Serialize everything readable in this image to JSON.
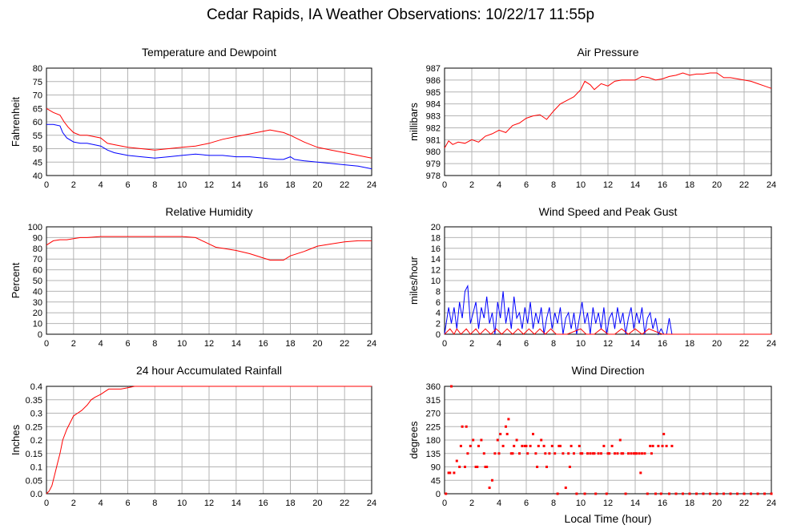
{
  "page": {
    "title": "Cedar Rapids, IA Weather Observations: 10/22/17 11:55p"
  },
  "colors": {
    "primary": "#ff0000",
    "secondary": "#0000ff",
    "grid": "#b4b4b4"
  },
  "chart_data": [
    {
      "id": "temperature",
      "type": "line",
      "title": "Temperature and Dewpoint",
      "xlabel": "",
      "ylabel": "Fahrenheit",
      "xlim": [
        0,
        24
      ],
      "ylim": [
        40,
        80
      ],
      "yticks": [
        40,
        45,
        50,
        55,
        60,
        65,
        70,
        75,
        80
      ],
      "grid": true,
      "series": [
        {
          "color": "#ff0000",
          "style": "line",
          "x": [
            0,
            0.5,
            1.0,
            1.3,
            1.6,
            2.0,
            2.5,
            3,
            4,
            4.5,
            5,
            6,
            7,
            8,
            9,
            10,
            11,
            12,
            13,
            14,
            15,
            16,
            16.5,
            17,
            17.5,
            18,
            19,
            20,
            21,
            22,
            23,
            24
          ],
          "y": [
            65,
            63.5,
            62.5,
            60,
            58,
            56,
            55,
            55,
            54,
            52,
            51.5,
            50.5,
            50,
            49.5,
            50,
            50.5,
            51,
            52,
            53.5,
            54.5,
            55.5,
            56.5,
            57,
            56.5,
            56,
            55,
            52.5,
            50.5,
            49.5,
            48.5,
            47.5,
            46.5
          ]
        },
        {
          "color": "#0000ff",
          "style": "line",
          "x": [
            0,
            0.5,
            1.0,
            1.2,
            1.5,
            2,
            2.5,
            3,
            4,
            4.5,
            5,
            6,
            7,
            8,
            9,
            10,
            11,
            12,
            13,
            14,
            15,
            16,
            17,
            17.5,
            18,
            18.3,
            19,
            20,
            21,
            22,
            23,
            24
          ],
          "y": [
            59,
            59,
            58.5,
            56,
            54,
            52.5,
            52,
            52,
            51,
            49.5,
            48.5,
            47.5,
            47,
            46.5,
            47,
            47.5,
            48,
            47.5,
            47.5,
            47,
            47,
            46.5,
            46,
            46,
            47,
            46,
            45.5,
            45,
            44.5,
            44,
            43.5,
            42.5
          ]
        }
      ]
    },
    {
      "id": "pressure",
      "type": "line",
      "title": "Air Pressure",
      "xlabel": "",
      "ylabel": "millibars",
      "xlim": [
        0,
        24
      ],
      "ylim": [
        978,
        987
      ],
      "yticks": [
        978,
        979,
        980,
        981,
        982,
        983,
        984,
        985,
        986,
        987
      ],
      "grid": true,
      "series": [
        {
          "color": "#ff0000",
          "style": "line",
          "x": [
            0,
            0.3,
            0.6,
            1.0,
            1.5,
            2,
            2.5,
            3,
            3.5,
            4,
            4.5,
            5,
            5.5,
            6,
            6.5,
            7,
            7.5,
            8,
            8.5,
            9,
            9.5,
            10,
            10.3,
            10.7,
            11,
            11.5,
            12,
            12.5,
            13,
            14,
            14.5,
            15,
            15.5,
            16,
            16.5,
            17,
            17.5,
            18,
            18.5,
            19,
            19.5,
            20,
            20.5,
            21,
            21.5,
            22,
            22.5,
            23,
            23.5,
            24
          ],
          "y": [
            980.3,
            980.9,
            980.6,
            980.8,
            980.7,
            981.0,
            980.8,
            981.3,
            981.5,
            981.8,
            981.6,
            982.2,
            982.4,
            982.8,
            983.0,
            983.1,
            982.7,
            983.4,
            984.0,
            984.3,
            984.6,
            985.2,
            985.9,
            985.6,
            985.2,
            985.7,
            985.5,
            985.9,
            986.0,
            986.0,
            986.3,
            986.2,
            986.0,
            986.1,
            986.3,
            986.4,
            986.6,
            986.4,
            986.5,
            986.5,
            986.6,
            986.6,
            986.2,
            986.2,
            986.1,
            986.0,
            985.9,
            985.7,
            985.5,
            985.3
          ]
        }
      ]
    },
    {
      "id": "humidity",
      "type": "line",
      "title": "Relative Humidity",
      "xlabel": "",
      "ylabel": "Percent",
      "xlim": [
        0,
        24
      ],
      "ylim": [
        0,
        100
      ],
      "yticks": [
        0,
        10,
        20,
        30,
        40,
        50,
        60,
        70,
        80,
        90,
        100
      ],
      "grid": true,
      "series": [
        {
          "color": "#ff0000",
          "style": "line",
          "x": [
            0,
            0.5,
            1,
            1.5,
            2,
            2.5,
            3,
            4,
            5,
            6,
            7,
            8,
            9,
            10,
            11,
            11.5,
            12,
            12.5,
            13,
            14,
            15,
            16,
            16.5,
            17,
            17.5,
            18,
            19,
            20,
            21,
            22,
            23,
            24
          ],
          "y": [
            83,
            87,
            88,
            88,
            89,
            90,
            90,
            91,
            91,
            91,
            91,
            91,
            91,
            91,
            90,
            87,
            84,
            81,
            80,
            78,
            75,
            71,
            69,
            69,
            69,
            73,
            77,
            82,
            84,
            86,
            87,
            87
          ]
        }
      ]
    },
    {
      "id": "wind-speed",
      "type": "line",
      "title": "Wind Speed and Peak Gust",
      "xlabel": "",
      "ylabel": "miles/hour",
      "xlim": [
        0,
        24
      ],
      "ylim": [
        0,
        20
      ],
      "yticks": [
        0,
        2,
        4,
        6,
        8,
        10,
        12,
        14,
        16,
        18,
        20
      ],
      "grid": true,
      "series": [
        {
          "color": "#0000ff",
          "style": "line",
          "x": [
            0,
            0.3,
            0.5,
            0.7,
            0.9,
            1.1,
            1.3,
            1.5,
            1.7,
            1.9,
            2.1,
            2.3,
            2.5,
            2.7,
            2.9,
            3.1,
            3.3,
            3.5,
            3.7,
            3.9,
            4.1,
            4.3,
            4.5,
            4.7,
            4.9,
            5.1,
            5.3,
            5.5,
            5.7,
            5.9,
            6.1,
            6.3,
            6.5,
            6.7,
            6.9,
            7.1,
            7.3,
            7.5,
            7.7,
            7.9,
            8.1,
            8.3,
            8.5,
            8.7,
            8.9,
            9.1,
            9.3,
            9.5,
            9.7,
            9.9,
            10.1,
            10.3,
            10.5,
            10.7,
            10.9,
            11.1,
            11.3,
            11.5,
            11.7,
            11.9,
            12.1,
            12.3,
            12.5,
            12.7,
            12.9,
            13.1,
            13.3,
            13.5,
            13.7,
            13.9,
            14.1,
            14.3,
            14.5,
            14.7,
            14.9,
            15.1,
            15.3,
            15.5,
            15.7,
            15.9,
            16.1,
            16.3,
            16.5,
            16.7,
            18,
            20,
            22,
            24
          ],
          "y": [
            0,
            5,
            2,
            5,
            1,
            6,
            3,
            8,
            9,
            2,
            4,
            6,
            1,
            5,
            3,
            7,
            2,
            4,
            0,
            6,
            3,
            8,
            2,
            5,
            1,
            7,
            3,
            4,
            1,
            5,
            2,
            6,
            1,
            4,
            2,
            5,
            0,
            3,
            5,
            1,
            4,
            2,
            5,
            0,
            3,
            4,
            1,
            4,
            0,
            3,
            6,
            2,
            4,
            0,
            5,
            2,
            4,
            1,
            5,
            0,
            3,
            4,
            1,
            5,
            2,
            4,
            0,
            3,
            5,
            1,
            4,
            2,
            5,
            0,
            3,
            4,
            1,
            3,
            0,
            1,
            0,
            0,
            3,
            0,
            0,
            0,
            0,
            0
          ]
        },
        {
          "color": "#ff0000",
          "style": "line",
          "x": [
            0,
            0.4,
            0.7,
            0.9,
            1.2,
            1.6,
            1.9,
            2.3,
            2.6,
            3.0,
            3.4,
            3.8,
            4.2,
            4.6,
            5.0,
            5.4,
            5.8,
            6.2,
            6.6,
            7.0,
            7.4,
            7.8,
            8.2,
            8.6,
            9.0,
            10.0,
            10.4,
            11.0,
            11.5,
            12.0,
            12.5,
            13.0,
            13.5,
            14.0,
            14.5,
            15.0,
            16,
            24
          ],
          "y": [
            0,
            1,
            0,
            1,
            0,
            1,
            0,
            1,
            0,
            1,
            0,
            1,
            0,
            1,
            0,
            1,
            0,
            1,
            0,
            1,
            0,
            1,
            0,
            0,
            0,
            1,
            0,
            0,
            1,
            0,
            0,
            1,
            0,
            1,
            0,
            1,
            0,
            0
          ]
        }
      ]
    },
    {
      "id": "rainfall",
      "type": "line",
      "title": "24 hour Accumulated Rainfall",
      "xlabel": "",
      "ylabel": "Inches",
      "xlim": [
        0,
        24
      ],
      "ylim": [
        0,
        0.4
      ],
      "yticks": [
        0.0,
        0.05,
        0.1,
        0.15,
        0.2,
        0.25,
        0.3,
        0.35,
        0.4
      ],
      "yticklabels": [
        "0.0",
        "0.05",
        "0.1",
        "0.15",
        "0.2",
        "0.25",
        "0.3",
        "0.35",
        "0.4"
      ],
      "grid": true,
      "series": [
        {
          "color": "#ff0000",
          "style": "line",
          "x": [
            0,
            0.2,
            0.4,
            0.6,
            0.8,
            1.0,
            1.2,
            1.5,
            1.8,
            2.0,
            2.3,
            2.6,
            3.0,
            3.3,
            3.6,
            4.0,
            4.3,
            4.6,
            5.0,
            5.5,
            6.0,
            6.5,
            24
          ],
          "y": [
            0,
            0.01,
            0.03,
            0.07,
            0.11,
            0.15,
            0.2,
            0.24,
            0.27,
            0.29,
            0.3,
            0.31,
            0.33,
            0.35,
            0.36,
            0.37,
            0.38,
            0.39,
            0.39,
            0.39,
            0.395,
            0.4,
            0.4
          ]
        }
      ]
    },
    {
      "id": "wind-direction",
      "type": "scatter",
      "title": "Wind Direction",
      "xlabel": "Local Time (hour)",
      "ylabel": "degrees",
      "xlim": [
        0,
        24
      ],
      "ylim": [
        0,
        360
      ],
      "yticks": [
        0,
        45,
        90,
        135,
        180,
        225,
        270,
        315,
        360
      ],
      "grid": true,
      "series": [
        {
          "color": "#ff0000",
          "style": "dots",
          "x": [
            0.1,
            0.3,
            0.5,
            0.7,
            0.9,
            1.1,
            1.3,
            1.5,
            1.7,
            1.9,
            2.1,
            2.3,
            2.5,
            2.7,
            2.9,
            3.1,
            3.3,
            3.5,
            3.7,
            3.9,
            4.1,
            4.3,
            4.5,
            4.7,
            4.9,
            5.1,
            5.3,
            5.5,
            5.7,
            5.9,
            6.1,
            6.3,
            6.5,
            6.7,
            6.9,
            7.1,
            7.3,
            7.5,
            7.7,
            7.9,
            8.1,
            8.3,
            8.5,
            8.7,
            8.9,
            9.1,
            9.3,
            9.5,
            9.7,
            9.9,
            10.1,
            10.3,
            10.5,
            10.7,
            10.9,
            11.1,
            11.3,
            11.5,
            11.7,
            11.9,
            12.1,
            12.3,
            12.5,
            12.7,
            12.9,
            13.1,
            13.3,
            13.5,
            13.7,
            13.9,
            14.1,
            14.3,
            14.5,
            14.7,
            14.9,
            15.1,
            15.3,
            15.5,
            15.7,
            15.9,
            16.1,
            16.3,
            16.5,
            16.7,
            17,
            17.5,
            18,
            18.5,
            19,
            19.5,
            20,
            20.5,
            21,
            21.5,
            22,
            22.5,
            23,
            23.5,
            24,
            0.4,
            1.2,
            1.6,
            2.4,
            3.0,
            4.0,
            4.6,
            5.0,
            6.0,
            6.8,
            7.4,
            8.4,
            9.2,
            10.0,
            11.0,
            12.0,
            13.0,
            14.0,
            14.4,
            15.2,
            16.0
          ],
          "y": [
            0,
            70,
            360,
            70,
            110,
            90,
            225,
            90,
            135,
            160,
            180,
            90,
            160,
            180,
            135,
            90,
            20,
            45,
            135,
            180,
            200,
            160,
            225,
            250,
            135,
            160,
            180,
            135,
            160,
            160,
            135,
            160,
            200,
            135,
            160,
            180,
            160,
            90,
            135,
            160,
            135,
            0,
            160,
            135,
            20,
            135,
            160,
            135,
            0,
            160,
            135,
            0,
            135,
            135,
            135,
            0,
            135,
            135,
            160,
            0,
            135,
            160,
            135,
            135,
            180,
            135,
            0,
            135,
            135,
            135,
            135,
            135,
            135,
            135,
            0,
            160,
            160,
            0,
            160,
            0,
            200,
            160,
            0,
            160,
            0,
            0,
            0,
            0,
            0,
            0,
            0,
            0,
            0,
            0,
            0,
            0,
            0,
            0,
            0,
            70,
            160,
            225,
            90,
            90,
            135,
            200,
            135,
            160,
            90,
            135,
            160,
            90,
            135,
            135,
            135,
            135,
            135,
            70,
            135,
            160
          ]
        }
      ]
    }
  ]
}
